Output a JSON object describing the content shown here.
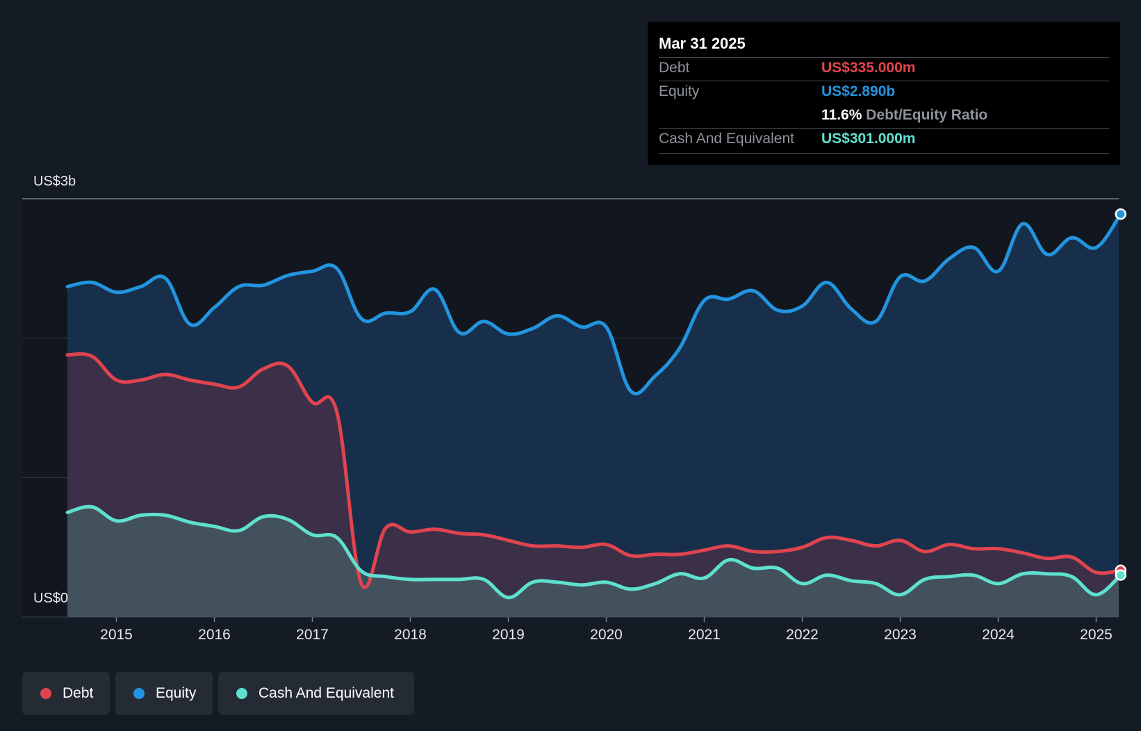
{
  "tooltip": {
    "date": "Mar 31 2025",
    "debt_label": "Debt",
    "debt_value": "US$335.000m",
    "equity_label": "Equity",
    "equity_value": "US$2.890b",
    "ratio_value": "11.6%",
    "ratio_label": "Debt/Equity Ratio",
    "cash_label": "Cash And Equivalent",
    "cash_value": "US$301.000m"
  },
  "legend": [
    {
      "label": "Debt",
      "color": "#e0444f"
    },
    {
      "label": "Equity",
      "color": "#2394df"
    },
    {
      "label": "Cash And Equivalent",
      "color": "#5fe0cf"
    }
  ],
  "chart_data": {
    "type": "area",
    "y_top_label": "US$3b",
    "y_bottom_label": "US$0",
    "ylim": [
      0,
      3.0
    ],
    "y_unit": "US$ billions",
    "grid": true,
    "legend_position": "bottom-left",
    "x_ticks": [
      "2015",
      "2016",
      "2017",
      "2018",
      "2019",
      "2020",
      "2021",
      "2022",
      "2023",
      "2024",
      "2025"
    ],
    "colors": {
      "debt": "#e0444f",
      "equity": "#2394df",
      "cash": "#5fe0cf"
    },
    "series": [
      {
        "name": "Equity",
        "points": [
          [
            2014.5,
            2.37
          ],
          [
            2014.75,
            2.4
          ],
          [
            2015.0,
            2.33
          ],
          [
            2015.25,
            2.37
          ],
          [
            2015.5,
            2.43
          ],
          [
            2015.75,
            2.1
          ],
          [
            2016.0,
            2.22
          ],
          [
            2016.25,
            2.37
          ],
          [
            2016.5,
            2.38
          ],
          [
            2016.75,
            2.45
          ],
          [
            2017.0,
            2.48
          ],
          [
            2017.25,
            2.5
          ],
          [
            2017.5,
            2.14
          ],
          [
            2017.75,
            2.18
          ],
          [
            2018.0,
            2.19
          ],
          [
            2018.25,
            2.35
          ],
          [
            2018.5,
            2.04
          ],
          [
            2018.75,
            2.12
          ],
          [
            2019.0,
            2.03
          ],
          [
            2019.25,
            2.07
          ],
          [
            2019.5,
            2.16
          ],
          [
            2019.75,
            2.08
          ],
          [
            2020.0,
            2.08
          ],
          [
            2020.25,
            1.62
          ],
          [
            2020.5,
            1.73
          ],
          [
            2020.75,
            1.93
          ],
          [
            2021.0,
            2.27
          ],
          [
            2021.25,
            2.28
          ],
          [
            2021.5,
            2.34
          ],
          [
            2021.75,
            2.2
          ],
          [
            2022.0,
            2.23
          ],
          [
            2022.25,
            2.4
          ],
          [
            2022.5,
            2.21
          ],
          [
            2022.75,
            2.12
          ],
          [
            2023.0,
            2.44
          ],
          [
            2023.25,
            2.41
          ],
          [
            2023.5,
            2.57
          ],
          [
            2023.75,
            2.65
          ],
          [
            2024.0,
            2.48
          ],
          [
            2024.25,
            2.82
          ],
          [
            2024.5,
            2.6
          ],
          [
            2024.75,
            2.72
          ],
          [
            2025.0,
            2.65
          ],
          [
            2025.25,
            2.89
          ]
        ]
      },
      {
        "name": "Debt",
        "points": [
          [
            2014.5,
            1.88
          ],
          [
            2014.75,
            1.87
          ],
          [
            2015.0,
            1.7
          ],
          [
            2015.25,
            1.7
          ],
          [
            2015.5,
            1.74
          ],
          [
            2015.75,
            1.7
          ],
          [
            2016.0,
            1.67
          ],
          [
            2016.25,
            1.65
          ],
          [
            2016.5,
            1.78
          ],
          [
            2016.75,
            1.8
          ],
          [
            2017.0,
            1.54
          ],
          [
            2017.25,
            1.47
          ],
          [
            2017.5,
            0.24
          ],
          [
            2017.75,
            0.64
          ],
          [
            2018.0,
            0.61
          ],
          [
            2018.25,
            0.63
          ],
          [
            2018.5,
            0.6
          ],
          [
            2018.75,
            0.59
          ],
          [
            2019.0,
            0.55
          ],
          [
            2019.25,
            0.51
          ],
          [
            2019.5,
            0.51
          ],
          [
            2019.75,
            0.5
          ],
          [
            2020.0,
            0.52
          ],
          [
            2020.25,
            0.44
          ],
          [
            2020.5,
            0.45
          ],
          [
            2020.75,
            0.45
          ],
          [
            2021.0,
            0.48
          ],
          [
            2021.25,
            0.51
          ],
          [
            2021.5,
            0.47
          ],
          [
            2021.75,
            0.47
          ],
          [
            2022.0,
            0.5
          ],
          [
            2022.25,
            0.57
          ],
          [
            2022.5,
            0.55
          ],
          [
            2022.75,
            0.51
          ],
          [
            2023.0,
            0.55
          ],
          [
            2023.25,
            0.47
          ],
          [
            2023.5,
            0.52
          ],
          [
            2023.75,
            0.49
          ],
          [
            2024.0,
            0.49
          ],
          [
            2024.25,
            0.46
          ],
          [
            2024.5,
            0.42
          ],
          [
            2024.75,
            0.43
          ],
          [
            2025.0,
            0.32
          ],
          [
            2025.25,
            0.335
          ]
        ]
      },
      {
        "name": "Cash And Equivalent",
        "points": [
          [
            2014.5,
            0.75
          ],
          [
            2014.75,
            0.79
          ],
          [
            2015.0,
            0.69
          ],
          [
            2015.25,
            0.73
          ],
          [
            2015.5,
            0.73
          ],
          [
            2015.75,
            0.68
          ],
          [
            2016.0,
            0.65
          ],
          [
            2016.25,
            0.62
          ],
          [
            2016.5,
            0.72
          ],
          [
            2016.75,
            0.7
          ],
          [
            2017.0,
            0.59
          ],
          [
            2017.25,
            0.57
          ],
          [
            2017.5,
            0.33
          ],
          [
            2017.75,
            0.29
          ],
          [
            2018.0,
            0.27
          ],
          [
            2018.25,
            0.27
          ],
          [
            2018.5,
            0.27
          ],
          [
            2018.75,
            0.27
          ],
          [
            2019.0,
            0.14
          ],
          [
            2019.25,
            0.25
          ],
          [
            2019.5,
            0.25
          ],
          [
            2019.75,
            0.23
          ],
          [
            2020.0,
            0.25
          ],
          [
            2020.25,
            0.2
          ],
          [
            2020.5,
            0.24
          ],
          [
            2020.75,
            0.31
          ],
          [
            2021.0,
            0.28
          ],
          [
            2021.25,
            0.41
          ],
          [
            2021.5,
            0.35
          ],
          [
            2021.75,
            0.35
          ],
          [
            2022.0,
            0.24
          ],
          [
            2022.25,
            0.3
          ],
          [
            2022.5,
            0.26
          ],
          [
            2022.75,
            0.24
          ],
          [
            2023.0,
            0.16
          ],
          [
            2023.25,
            0.27
          ],
          [
            2023.5,
            0.29
          ],
          [
            2023.75,
            0.3
          ],
          [
            2024.0,
            0.24
          ],
          [
            2024.25,
            0.31
          ],
          [
            2024.5,
            0.31
          ],
          [
            2024.75,
            0.29
          ],
          [
            2025.0,
            0.16
          ],
          [
            2025.25,
            0.301
          ]
        ]
      }
    ]
  }
}
